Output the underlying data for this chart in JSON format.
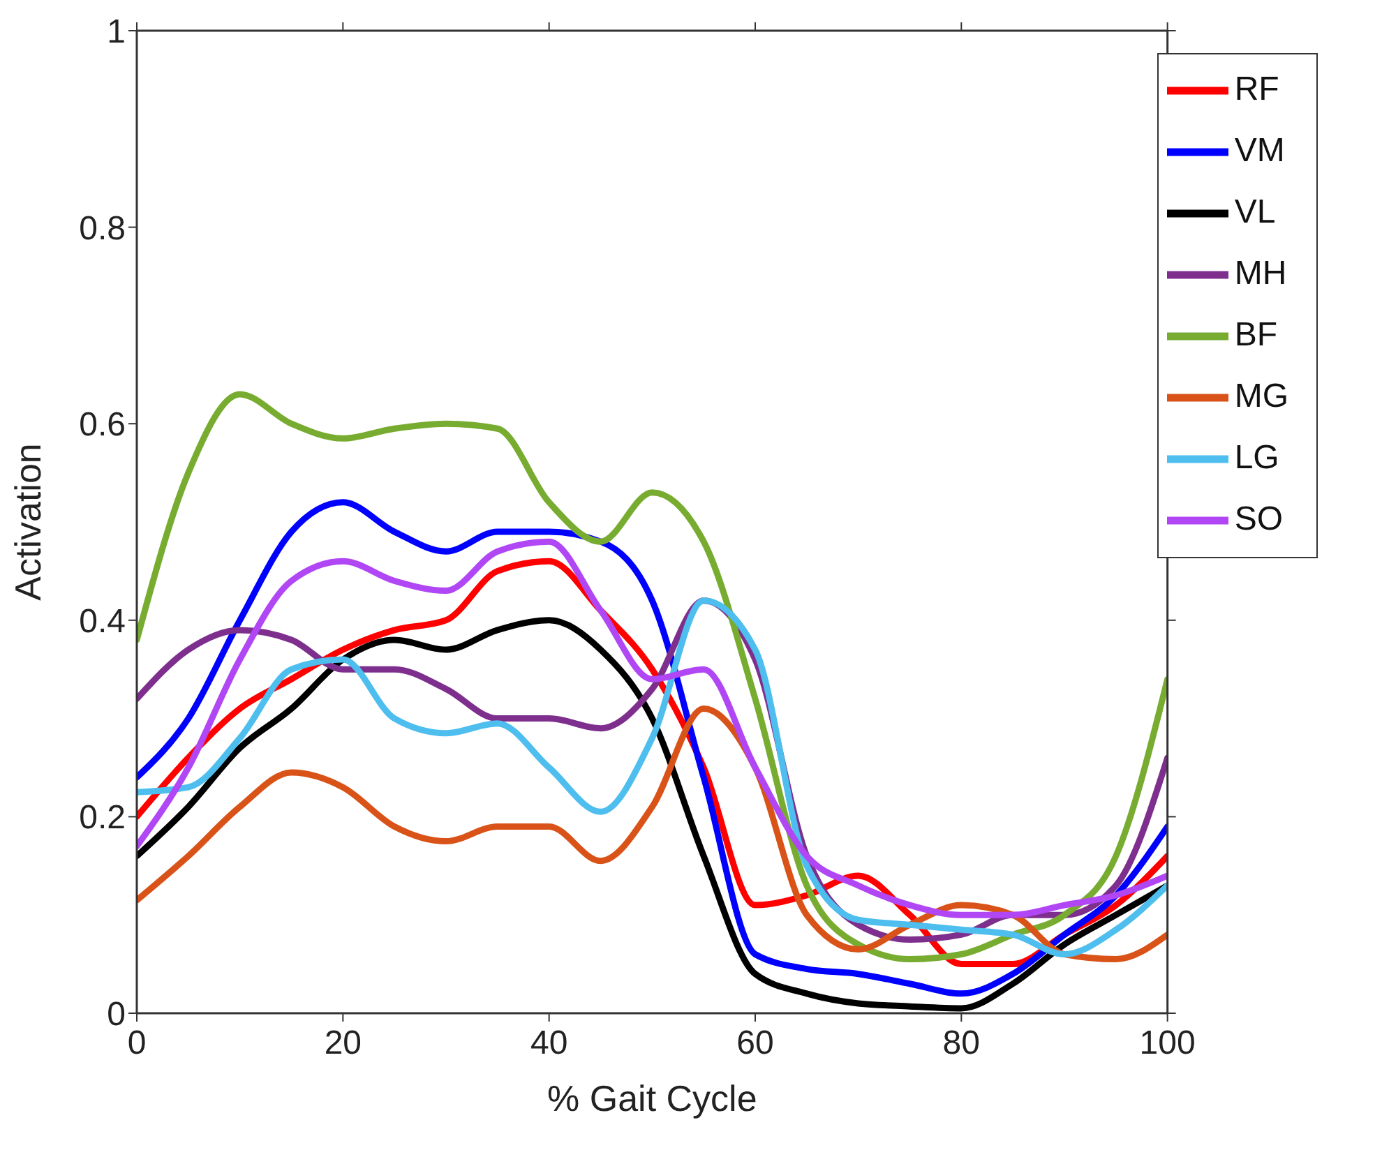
{
  "chart_data": {
    "type": "line",
    "xlabel": "% Gait Cycle",
    "ylabel": "Activation",
    "xlim": [
      0,
      100
    ],
    "xticks": [
      0,
      20,
      40,
      60,
      80,
      100
    ],
    "ylim": [
      0,
      1
    ],
    "yticks": [
      0,
      0.2,
      0.4,
      0.6,
      0.8,
      1
    ],
    "legend": "top right",
    "x": [
      0,
      5,
      10,
      15,
      20,
      25,
      30,
      35,
      40,
      45,
      50,
      55,
      60,
      65,
      70,
      75,
      80,
      85,
      90,
      95,
      100
    ],
    "series": [
      {
        "name": "RF",
        "color": "#ff0000",
        "values": [
          0.2,
          0.26,
          0.31,
          0.34,
          0.37,
          0.39,
          0.4,
          0.45,
          0.46,
          0.41,
          0.35,
          0.25,
          0.11,
          0.12,
          0.14,
          0.1,
          0.05,
          0.05,
          0.08,
          0.11,
          0.16
        ]
      },
      {
        "name": "VM",
        "color": "#0000ff",
        "values": [
          0.24,
          0.3,
          0.4,
          0.49,
          0.52,
          0.49,
          0.47,
          0.49,
          0.49,
          0.48,
          0.42,
          0.24,
          0.06,
          0.045,
          0.04,
          0.03,
          0.02,
          0.04,
          0.08,
          0.12,
          0.19
        ]
      },
      {
        "name": "VL",
        "color": "#000000",
        "values": [
          0.16,
          0.21,
          0.27,
          0.31,
          0.36,
          0.38,
          0.37,
          0.39,
          0.4,
          0.37,
          0.3,
          0.16,
          0.04,
          0.02,
          0.01,
          0.007,
          0.005,
          0.03,
          0.07,
          0.1,
          0.13
        ]
      },
      {
        "name": "MH",
        "color": "#7e2f8e",
        "values": [
          0.32,
          0.37,
          0.39,
          0.38,
          0.35,
          0.35,
          0.33,
          0.3,
          0.3,
          0.29,
          0.33,
          0.42,
          0.36,
          0.16,
          0.09,
          0.075,
          0.08,
          0.1,
          0.1,
          0.13,
          0.26
        ]
      },
      {
        "name": "BF",
        "color": "#77ac30",
        "values": [
          0.38,
          0.55,
          0.63,
          0.6,
          0.585,
          0.595,
          0.6,
          0.595,
          0.52,
          0.48,
          0.53,
          0.48,
          0.32,
          0.13,
          0.07,
          0.055,
          0.06,
          0.08,
          0.1,
          0.16,
          0.34
        ]
      },
      {
        "name": "MG",
        "color": "#d95319",
        "values": [
          0.115,
          0.16,
          0.21,
          0.245,
          0.23,
          0.19,
          0.175,
          0.19,
          0.19,
          0.155,
          0.21,
          0.31,
          0.25,
          0.1,
          0.065,
          0.09,
          0.11,
          0.1,
          0.06,
          0.055,
          0.08
        ]
      },
      {
        "name": "LG",
        "color": "#4dbeee",
        "values": [
          0.225,
          0.23,
          0.28,
          0.35,
          0.36,
          0.3,
          0.285,
          0.295,
          0.25,
          0.205,
          0.28,
          0.42,
          0.37,
          0.15,
          0.095,
          0.09,
          0.085,
          0.08,
          0.06,
          0.085,
          0.13
        ]
      },
      {
        "name": "SO",
        "color": "#b146f5",
        "values": [
          0.17,
          0.25,
          0.36,
          0.44,
          0.46,
          0.44,
          0.43,
          0.47,
          0.48,
          0.41,
          0.34,
          0.35,
          0.25,
          0.16,
          0.13,
          0.11,
          0.1,
          0.1,
          0.11,
          0.12,
          0.14
        ]
      }
    ]
  }
}
